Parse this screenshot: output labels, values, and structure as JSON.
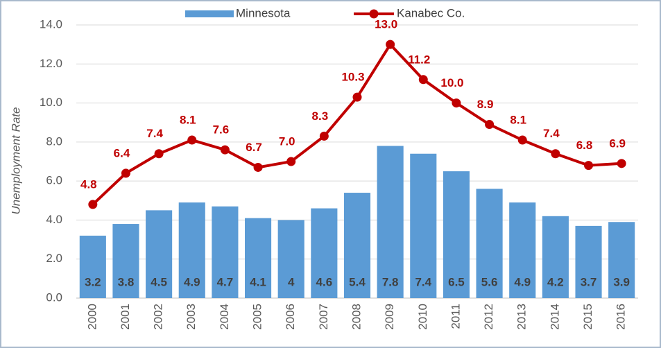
{
  "chart_data": {
    "type": "bar",
    "y_axis_label": "Unemployment Rate",
    "categories": [
      "2000",
      "2001",
      "2002",
      "2003",
      "2004",
      "2005",
      "2006",
      "2007",
      "2008",
      "2009",
      "2010",
      "2011",
      "2012",
      "2013",
      "2014",
      "2015",
      "2016"
    ],
    "series": [
      {
        "name": "Minnesota",
        "type": "bar",
        "color": "#5b9bd5",
        "values": [
          3.2,
          3.8,
          4.5,
          4.9,
          4.7,
          4.1,
          4,
          4.6,
          5.4,
          7.8,
          7.4,
          6.5,
          5.6,
          4.9,
          4.2,
          3.7,
          3.9
        ]
      },
      {
        "name": "Kanabec Co.",
        "type": "line",
        "color": "#c00000",
        "values": [
          4.8,
          6.4,
          7.4,
          8.1,
          7.6,
          6.7,
          7.0,
          8.3,
          10.3,
          13.0,
          11.2,
          10.0,
          8.9,
          8.1,
          7.4,
          6.8,
          6.9
        ],
        "value_labels": [
          "4.8",
          "6.4",
          "7.4",
          "8.1",
          "7.6",
          "6.7",
          "7.0",
          "8.3",
          "10.3",
          "13.0",
          "11.2",
          "10.0",
          "8.9",
          "8.1",
          "7.4",
          "6.8",
          "6.9"
        ]
      }
    ],
    "ylim": [
      0,
      14
    ],
    "yticks": [
      {
        "value": 0,
        "label": "0.0"
      },
      {
        "value": 2,
        "label": "2.0"
      },
      {
        "value": 4,
        "label": "4.0"
      },
      {
        "value": 6,
        "label": "6.0"
      },
      {
        "value": 8,
        "label": "8.0"
      },
      {
        "value": 10,
        "label": "10.0"
      },
      {
        "value": 12,
        "label": "12.0"
      },
      {
        "value": 14,
        "label": "14.0"
      }
    ],
    "grid": true,
    "legend": "top"
  }
}
